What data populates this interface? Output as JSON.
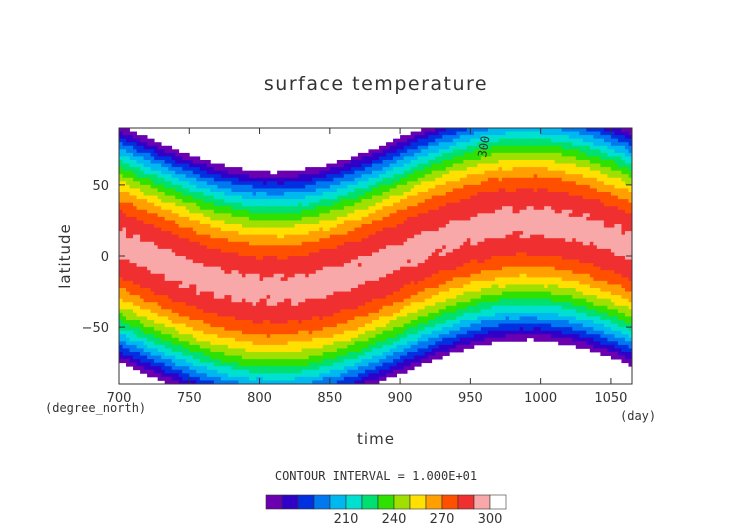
{
  "chart_data": {
    "type": "heatmap",
    "title": "surface temperature",
    "xlabel": "time",
    "ylabel": "latitude",
    "x_units": "(day)",
    "y_units": "(degree_north)",
    "xlim": [
      700,
      1065
    ],
    "ylim": [
      -90,
      90
    ],
    "x_ticks": [
      700,
      750,
      800,
      850,
      900,
      950,
      1000,
      1050
    ],
    "y_ticks": [
      50,
      0,
      -50
    ],
    "contour_interval_text": "CONTOUR INTERVAL = 1.000E+01",
    "contour_label": "300",
    "levels": [
      170,
      180,
      190,
      200,
      210,
      220,
      230,
      240,
      250,
      260,
      270,
      280,
      290,
      300,
      310
    ],
    "colorbar_labels": [
      210,
      240,
      270,
      300
    ],
    "colors": [
      "#6a00b0",
      "#3000c8",
      "#0030e0",
      "#0078f0",
      "#00b8f0",
      "#00e0d0",
      "#00e070",
      "#30e000",
      "#a0e000",
      "#ffe000",
      "#ffa000",
      "#ff5000",
      "#f03030",
      "#f8a8a8",
      "#ffffff"
    ]
  }
}
